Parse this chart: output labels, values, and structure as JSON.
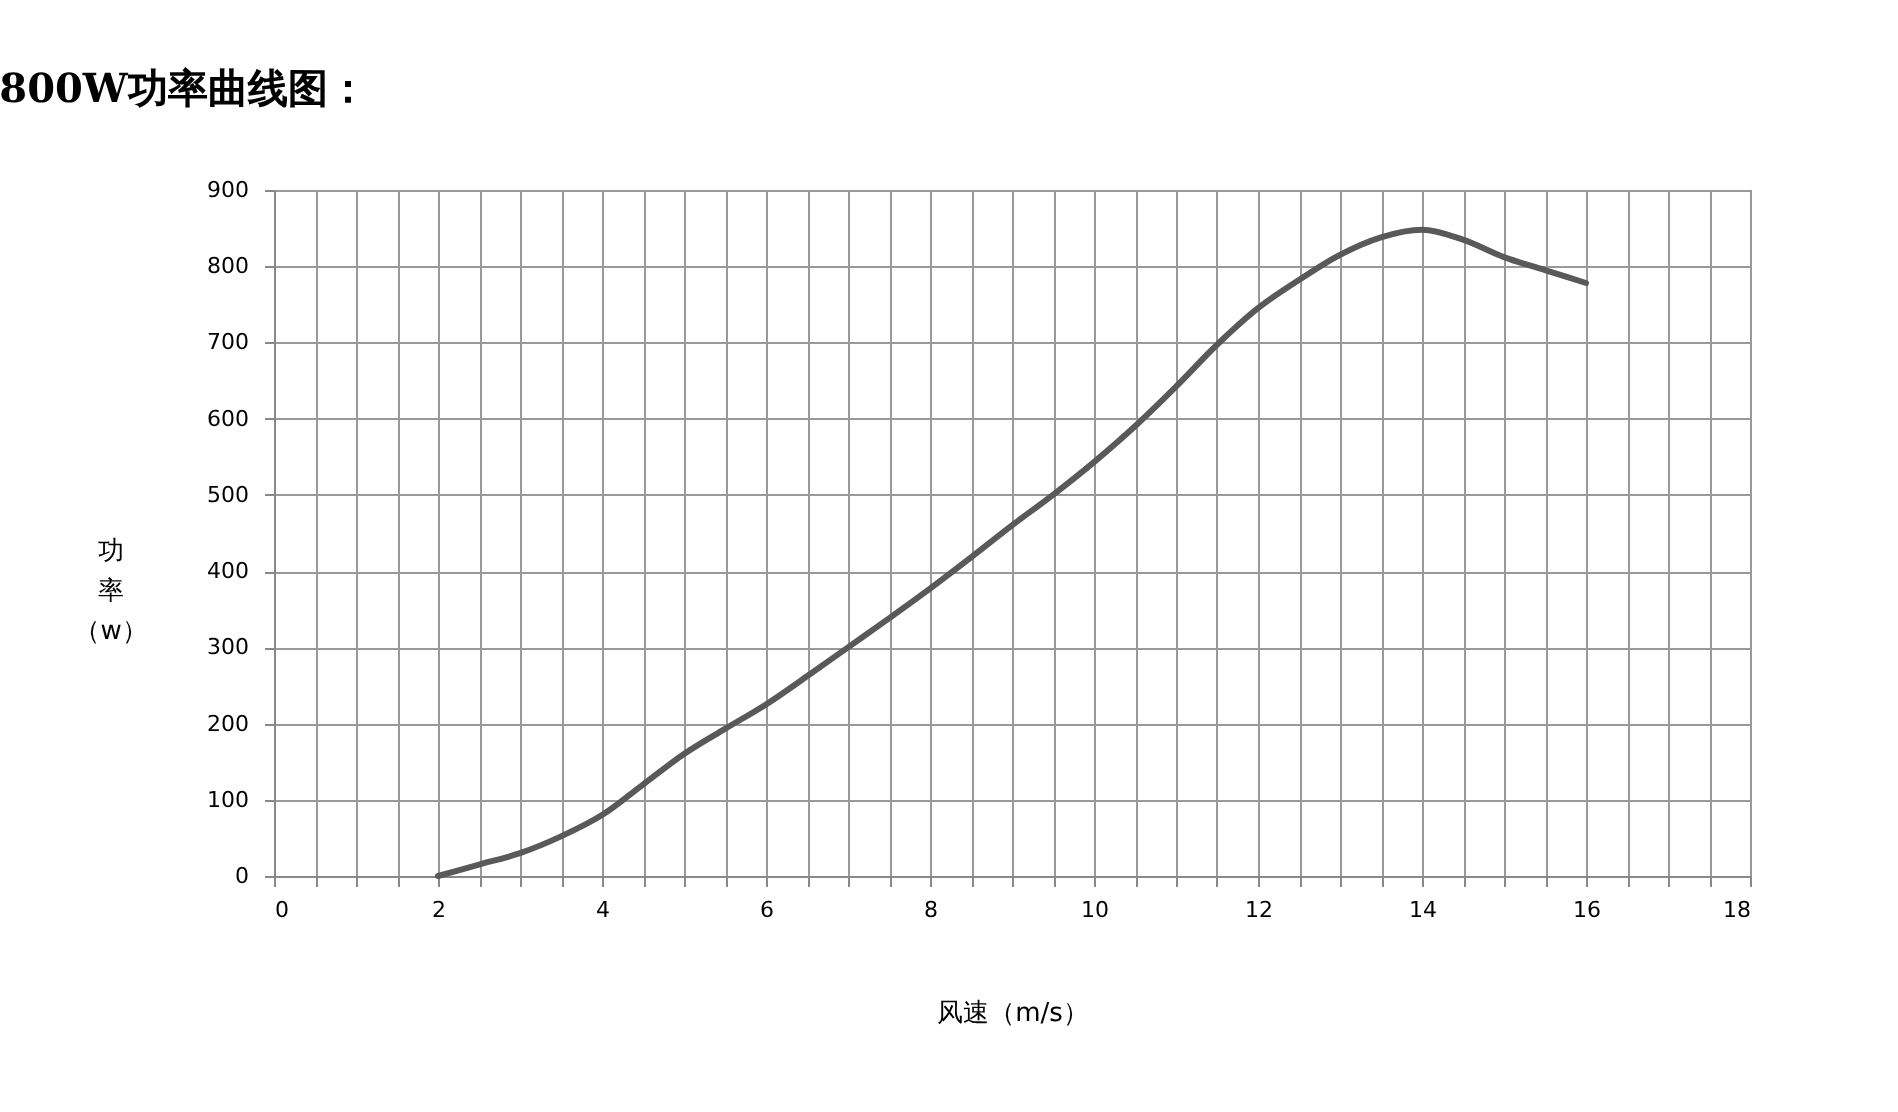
{
  "chart_data": {
    "type": "line",
    "title": "800W功率曲线图：",
    "xlabel": "风速（m/s）",
    "ylabel": "功率（w）",
    "x": [
      2,
      2.5,
      3,
      3.5,
      4,
      4.5,
      5,
      5.5,
      6,
      6.5,
      7,
      7.5,
      8,
      8.5,
      9,
      9.5,
      10,
      10.5,
      11,
      11.5,
      12,
      12.5,
      13,
      13.5,
      14,
      14.5,
      15,
      15.5,
      16
    ],
    "series": [
      {
        "color": "#595959",
        "values": [
          0,
          15,
          30,
          52,
          80,
          120,
          160,
          193,
          225,
          262,
          300,
          338,
          377,
          418,
          460,
          500,
          543,
          590,
          642,
          697,
          745,
          782,
          815,
          838,
          848,
          835,
          812,
          795,
          778
        ]
      }
    ],
    "xlim": [
      0,
      18
    ],
    "xticks": [
      0,
      {
        "value": 0.5,
        "label": null
      },
      {
        "value": 1,
        "label": null
      },
      {
        "value": 1.5,
        "label": null
      },
      2,
      {
        "value": 2.5,
        "label": null
      },
      {
        "value": 3,
        "label": null
      },
      {
        "value": 3.5,
        "label": null
      },
      4,
      {
        "value": 4.5,
        "label": null
      },
      {
        "value": 5,
        "label": null
      },
      {
        "value": 5.5,
        "label": null
      },
      6,
      {
        "value": 6.5,
        "label": null
      },
      {
        "value": 7,
        "label": null
      },
      {
        "value": 7.5,
        "label": null
      },
      8,
      {
        "value": 8.5,
        "label": null
      },
      {
        "value": 9,
        "label": null
      },
      {
        "value": 9.5,
        "label": null
      },
      10,
      {
        "value": 10.5,
        "label": null
      },
      {
        "value": 11,
        "label": null
      },
      {
        "value": 11.5,
        "label": null
      },
      12,
      {
        "value": 12.5,
        "label": null
      },
      {
        "value": 13,
        "label": null
      },
      {
        "value": 13.5,
        "label": null
      },
      14,
      {
        "value": 14.5,
        "label": null
      },
      {
        "value": 15,
        "label": null
      },
      {
        "value": 15.5,
        "label": null
      },
      16,
      {
        "value": 16.5,
        "label": null
      },
      {
        "value": 17,
        "label": null
      },
      {
        "value": 17.5,
        "label": null
      },
      18
    ],
    "ylim": [
      0,
      900
    ],
    "yticks": [
      0,
      100,
      200,
      300,
      400,
      500,
      600,
      700,
      800,
      900
    ],
    "grid": true,
    "line_style": "solid",
    "marker": "none",
    "legend": false
  }
}
